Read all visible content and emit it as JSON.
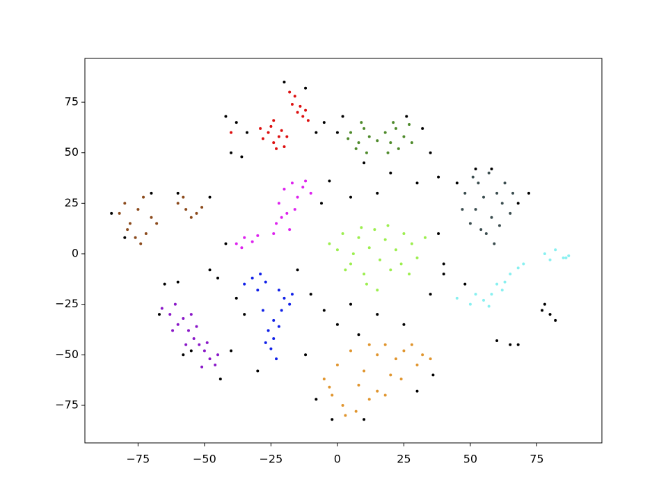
{
  "chart_data": {
    "type": "scatter",
    "xlim": [
      -95.0,
      99.5
    ],
    "ylim": [
      -93.6,
      96.7
    ],
    "xticks": [
      {
        "value": -75,
        "label": "−75"
      },
      {
        "value": -50,
        "label": "−50"
      },
      {
        "value": -25,
        "label": "−25"
      },
      0,
      25,
      50,
      75
    ],
    "yticks": [
      {
        "value": -75,
        "label": "−75"
      },
      {
        "value": -50,
        "label": "−50"
      },
      {
        "value": -25,
        "label": "−25"
      },
      0,
      25,
      50,
      75
    ],
    "series": [
      {
        "color": "#000000",
        "x": [
          -42,
          -38,
          -40,
          -36,
          -34,
          -20,
          -12,
          -8,
          -5,
          0,
          2,
          26,
          32,
          35,
          10,
          20,
          30,
          38,
          15,
          5,
          -3,
          -6,
          45,
          52,
          58,
          68,
          72,
          -85,
          -80,
          -70,
          -60,
          -48,
          -42,
          -60,
          -48,
          -45,
          -38,
          -35,
          -15,
          -10,
          -5,
          0,
          5,
          8,
          15,
          25,
          35,
          40,
          38,
          48,
          78,
          80,
          82,
          77,
          65,
          60,
          68,
          -67,
          -58,
          -44,
          -40,
          -30,
          -12,
          -8,
          -2,
          10,
          36,
          30,
          40,
          -55,
          -65
        ],
        "y": [
          68,
          65,
          50,
          48,
          60,
          85,
          82,
          60,
          65,
          60,
          68,
          68,
          62,
          50,
          45,
          40,
          35,
          38,
          30,
          28,
          36,
          25,
          35,
          42,
          42,
          25,
          30,
          20,
          8,
          30,
          30,
          28,
          5,
          -14,
          -8,
          -12,
          -22,
          -30,
          -8,
          -20,
          -28,
          -35,
          -25,
          -40,
          -30,
          -35,
          -20,
          -5,
          10,
          -15,
          -25,
          -30,
          -33,
          -28,
          -45,
          -43,
          -45,
          -30,
          -50,
          -62,
          -48,
          -58,
          -50,
          -72,
          -82,
          -82,
          -60,
          -68,
          -10,
          -48,
          -15
        ]
      },
      {
        "color": "#dd1010",
        "x": [
          -26,
          -24,
          -22,
          -20,
          -25,
          -21,
          -28,
          -23,
          -19,
          -17,
          -15,
          -13,
          -16,
          -14,
          -12,
          -18,
          -11,
          -29,
          -40,
          -24
        ],
        "y": [
          60,
          55,
          58,
          53,
          63,
          61,
          57,
          52,
          58,
          74,
          70,
          68,
          78,
          73,
          71,
          80,
          66,
          62,
          60,
          66
        ]
      },
      {
        "color": "#4e8a2b",
        "x": [
          5,
          8,
          10,
          7,
          12,
          9,
          4,
          18,
          20,
          22,
          25,
          19,
          23,
          27,
          15,
          21,
          28,
          11
        ],
        "y": [
          60,
          55,
          62,
          52,
          58,
          65,
          57,
          60,
          55,
          62,
          58,
          50,
          52,
          64,
          56,
          65,
          55,
          50
        ]
      },
      {
        "color": "#3b4d4f",
        "x": [
          48,
          52,
          55,
          58,
          60,
          50,
          53,
          57,
          62,
          65,
          56,
          59,
          63,
          47,
          54,
          61,
          66,
          51
        ],
        "y": [
          30,
          22,
          28,
          18,
          30,
          15,
          35,
          40,
          25,
          20,
          10,
          5,
          35,
          22,
          12,
          14,
          30,
          38
        ]
      },
      {
        "color": "#dd22ee",
        "x": [
          -20,
          -17,
          -13,
          -10,
          -15,
          -22,
          -19,
          -23,
          -18,
          -21,
          -16,
          -12,
          -38,
          -35,
          -32,
          -36,
          -30,
          -24
        ],
        "y": [
          32,
          35,
          33,
          30,
          28,
          25,
          20,
          15,
          12,
          18,
          22,
          36,
          5,
          8,
          6,
          3,
          9,
          10
        ]
      },
      {
        "color": "#8b4a1c",
        "x": [
          -82,
          -78,
          -75,
          -72,
          -76,
          -70,
          -80,
          -73,
          -68,
          -74,
          -79,
          -60,
          -57,
          -55,
          -53,
          -58,
          -51
        ],
        "y": [
          20,
          15,
          22,
          10,
          8,
          18,
          25,
          28,
          15,
          5,
          12,
          25,
          22,
          18,
          20,
          28,
          23
        ]
      },
      {
        "color": "#9cee4e",
        "x": [
          -3,
          0,
          2,
          5,
          8,
          10,
          12,
          14,
          16,
          18,
          20,
          22,
          25,
          28,
          30,
          33,
          6,
          11,
          15,
          24,
          19,
          3,
          27,
          9
        ],
        "y": [
          5,
          2,
          10,
          -5,
          8,
          -10,
          3,
          12,
          -3,
          7,
          -8,
          2,
          10,
          5,
          -2,
          8,
          0,
          -15,
          -18,
          -5,
          14,
          -8,
          -10,
          13
        ]
      },
      {
        "color": "#88f0f0",
        "x": [
          45,
          50,
          55,
          58,
          60,
          62,
          65,
          68,
          52,
          57,
          63,
          70,
          78,
          82,
          85,
          87,
          86,
          80
        ],
        "y": [
          -22,
          -25,
          -23,
          -20,
          -15,
          -18,
          -10,
          -7,
          -20,
          -26,
          -14,
          -5,
          0,
          2,
          -2,
          -1,
          -2,
          -3
        ]
      },
      {
        "color": "#1020e8",
        "x": [
          -35,
          -32,
          -29,
          -27,
          -30,
          -22,
          -20,
          -18,
          -21,
          -17,
          -26,
          -24,
          -25,
          -23,
          -27,
          -22,
          -28,
          -24
        ],
        "y": [
          -15,
          -12,
          -10,
          -14,
          -18,
          -18,
          -22,
          -25,
          -28,
          -20,
          -38,
          -42,
          -47,
          -52,
          -44,
          -36,
          -28,
          -33
        ]
      },
      {
        "color": "#8a18c8",
        "x": [
          -66,
          -63,
          -60,
          -58,
          -56,
          -54,
          -52,
          -50,
          -48,
          -46,
          -55,
          -61,
          -53,
          -49,
          -45,
          -57,
          -62,
          -51
        ],
        "y": [
          -27,
          -30,
          -35,
          -32,
          -38,
          -42,
          -45,
          -48,
          -52,
          -55,
          -30,
          -25,
          -36,
          -44,
          -50,
          -45,
          -38,
          -56
        ]
      },
      {
        "color": "#e0952e",
        "x": [
          -5,
          -2,
          0,
          2,
          5,
          8,
          10,
          12,
          15,
          18,
          20,
          22,
          25,
          28,
          30,
          32,
          15,
          3,
          7,
          -3,
          24,
          18,
          35,
          12
        ],
        "y": [
          -62,
          -70,
          -55,
          -75,
          -48,
          -65,
          -58,
          -72,
          -50,
          -45,
          -60,
          -52,
          -48,
          -45,
          -55,
          -50,
          -68,
          -80,
          -78,
          -66,
          -62,
          -70,
          -52,
          -45
        ]
      }
    ]
  }
}
